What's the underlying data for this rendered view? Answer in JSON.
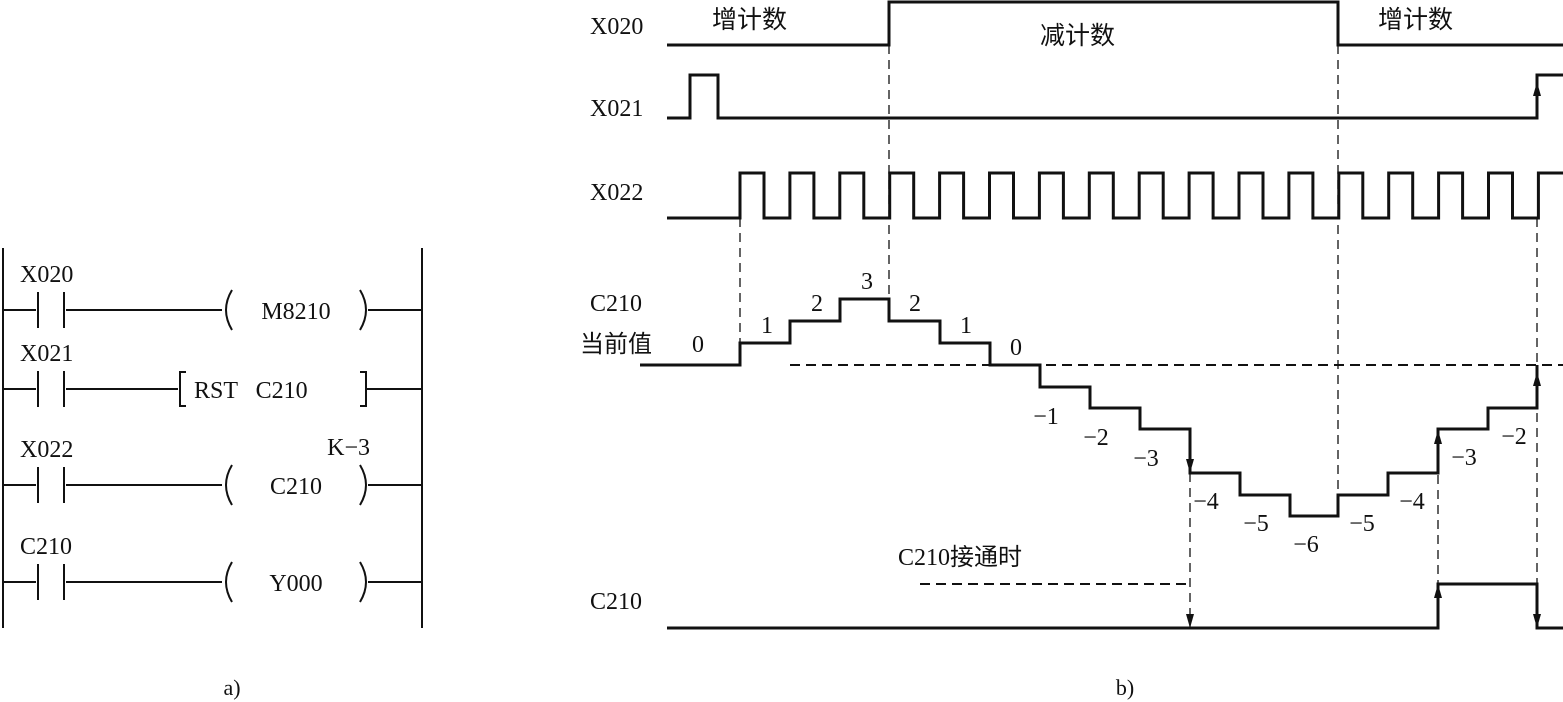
{
  "ladder": {
    "caption": "a)",
    "rungs": [
      {
        "contact": "X020",
        "coil_type": "coil",
        "coil": "M8210",
        "setting": ""
      },
      {
        "contact": "X021",
        "coil_type": "instruction",
        "coil": "RST   C210",
        "setting": ""
      },
      {
        "contact": "X022",
        "coil_type": "coil",
        "coil": "C210",
        "setting": "K−3"
      },
      {
        "contact": "C210",
        "coil_type": "coil",
        "coil": "Y000",
        "setting": ""
      }
    ]
  },
  "timing": {
    "caption": "b)",
    "signals": {
      "x020": "X020",
      "x021": "X021",
      "x022": "X022",
      "c210_value": "C210",
      "c210_value_sub": "当前值",
      "c210": "C210"
    },
    "phase_labels": [
      "增计数",
      "减计数",
      "增计数"
    ],
    "counter_values": [
      "0",
      "1",
      "2",
      "3",
      "2",
      "1",
      "0",
      "−1",
      "−2",
      "−3",
      "−4",
      "−5",
      "−6",
      "−5",
      "−4",
      "−3",
      "−2"
    ],
    "annotation": "C210接通时"
  }
}
